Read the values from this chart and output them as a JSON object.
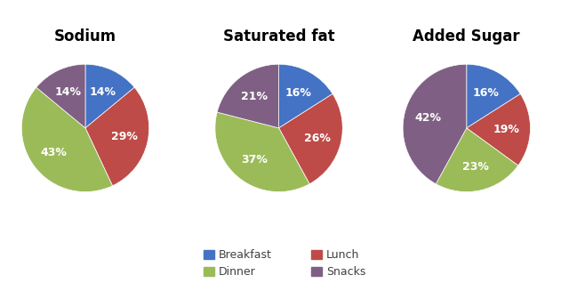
{
  "charts": [
    {
      "title": "Sodium",
      "values": [
        14,
        29,
        43,
        14
      ],
      "labels": [
        "14%",
        "29%",
        "43%",
        "14%"
      ],
      "order": [
        "Breakfast",
        "Lunch",
        "Dinner",
        "Snacks"
      ]
    },
    {
      "title": "Saturated fat",
      "values": [
        16,
        26,
        37,
        21
      ],
      "labels": [
        "16%",
        "26%",
        "37%",
        "21%"
      ],
      "order": [
        "Breakfast",
        "Lunch",
        "Dinner",
        "Snacks"
      ]
    },
    {
      "title": "Added Sugar",
      "values": [
        16,
        19,
        23,
        42
      ],
      "labels": [
        "16%",
        "19%",
        "23%",
        "42%"
      ],
      "order": [
        "Breakfast",
        "Lunch",
        "Dinner",
        "Snacks"
      ]
    }
  ],
  "colors": {
    "Breakfast": "#4472C4",
    "Lunch": "#BE4B48",
    "Dinner": "#9BBB59",
    "Snacks": "#7F6084"
  },
  "legend_row1": [
    "Breakfast",
    "Dinner"
  ],
  "legend_row2": [
    "Lunch",
    "Snacks"
  ],
  "background_color": "#FFFFFF",
  "title_fontsize": 12,
  "label_fontsize": 9,
  "legend_fontsize": 9
}
